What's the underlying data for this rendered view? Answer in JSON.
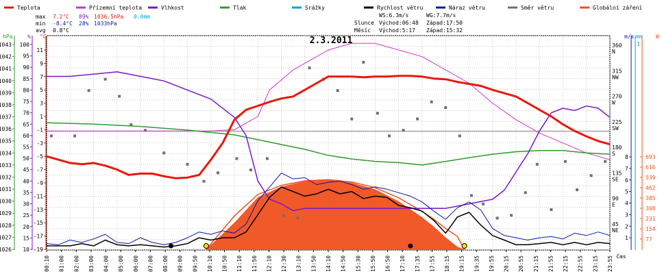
{
  "chart_data": {
    "type": "line",
    "title": "2.3.2011",
    "legend": [
      {
        "name": "Teplota",
        "color": "#e8180c"
      },
      {
        "name": "Přízemní teplota",
        "color": "#cc33cc"
      },
      {
        "name": "Vlhkost",
        "color": "#7a17c8"
      },
      {
        "name": "Tlak",
        "color": "#2e9a2e"
      },
      {
        "name": "Srážky",
        "color": "#00a0d8"
      },
      {
        "name": "Rychlost větru",
        "color": "#000000"
      },
      {
        "name": "Náraz větru",
        "color": "#0a16a8"
      },
      {
        "name": "Směr větru",
        "color": "#707070"
      },
      {
        "name": "Globální záření",
        "color": "#f0501e"
      }
    ],
    "stats": {
      "max_label": "max",
      "min_label": "min",
      "avg_label": "avg",
      "max_temp": "7.2°C",
      "max_hum": "89%",
      "max_press": "1036.5hPa",
      "max_rain": "0.0mm",
      "min_temp": "-8.4°C",
      "min_hum": "28%",
      "min_press": "1033hPa",
      "avg_temp": "0.8°C"
    },
    "wind_info": {
      "ws": "WS:6.3m/s",
      "wg": "WG:7.7m/s"
    },
    "sun": {
      "label": "Slunce",
      "rise": "Východ:06:48",
      "set": "Západ:17:50"
    },
    "moon": {
      "label": "Měsíc",
      "rise": "Východ:5:17",
      "set": "Západ:15:32"
    },
    "x_label": "čas",
    "x_ticks": [
      "00:10",
      "01:00",
      "02:00",
      "03:00",
      "04:00",
      "05:00",
      "06:00",
      "07:00",
      "08:00",
      "09:00",
      "09:50",
      "10:10",
      "10:50",
      "11:10",
      "11:50",
      "12:10",
      "12:30",
      "13:10",
      "13:50",
      "14:10",
      "14:50",
      "15:30",
      "15:50",
      "16:50",
      "17:10",
      "17:35",
      "17:55",
      "18:15",
      "19:15",
      "19:35",
      "19:55",
      "20:15",
      "20:55",
      "21:15",
      "21:55",
      "22:15",
      "22:55",
      "23:15",
      "23:55"
    ],
    "left_axes": {
      "press": {
        "unit": "hPa",
        "ticks": [
          "1026",
          "1027",
          "1028",
          "1029",
          "1030",
          "1031",
          "1032",
          "1033",
          "1034",
          "1035",
          "1036",
          "1037",
          "1038",
          "1039",
          "1040",
          "1041",
          "1042",
          "1043"
        ]
      },
      "hum": {
        "unit": "%",
        "ticks": [
          "10",
          "15",
          "20",
          "25",
          "30",
          "35",
          "40",
          "45",
          "50",
          "55",
          "60",
          "65",
          "70",
          "75",
          "80",
          "85",
          "90",
          "95",
          "100"
        ]
      },
      "temp": {
        "unit": "°C",
        "ticks": [
          "-19",
          "-17",
          "-15",
          "-13",
          "-11",
          "-9",
          "-7",
          "-5",
          "-3",
          "-1",
          "1",
          "3",
          "5",
          "7",
          "9",
          "11"
        ]
      }
    },
    "right_axes": {
      "dir": {
        "ticks": [
          "360 N",
          "315 NW",
          "270 W",
          "225 SW",
          "180 S",
          "135 SE",
          "90 E",
          "45 NE"
        ]
      },
      "wind": {
        "unit": "m/s",
        "ticks": [
          "1",
          "2",
          "3",
          "4",
          "5",
          "6",
          "7",
          "8"
        ]
      },
      "rain": {
        "unit": "mm",
        "ticks": [
          "1"
        ]
      },
      "rad": {
        "unit": "W",
        "ticks": [
          "77",
          "154",
          "231",
          "308",
          "385",
          "462",
          "539",
          "616",
          "693"
        ]
      }
    },
    "series": [
      {
        "name": "Teplota",
        "unit": "°C",
        "x": [
          0,
          0.5,
          1,
          1.5,
          2,
          2.5,
          3,
          3.5,
          4,
          4.5,
          5,
          5.5,
          6,
          6.5,
          7,
          7.5,
          8,
          8.5,
          9,
          9.5,
          10,
          10.5,
          11,
          11.5,
          12,
          12.5,
          13,
          13.5,
          14,
          14.5,
          15,
          15.5,
          16,
          16.5,
          17,
          17.5,
          18,
          18.5,
          19,
          19.5,
          20,
          20.5,
          21,
          21.5,
          22,
          22.5,
          23,
          23.5,
          24
        ],
        "values": [
          -5,
          -5.5,
          -6,
          -6.2,
          -6,
          -6.4,
          -7,
          -7.8,
          -7.6,
          -7.6,
          -8,
          -8.3,
          -8.2,
          -7.8,
          -5.5,
          -3,
          0.5,
          2,
          2.6,
          3.2,
          3.7,
          4,
          5,
          6,
          7,
          7,
          7,
          6.9,
          7,
          7,
          7.1,
          7.1,
          7,
          6.7,
          6.6,
          6.2,
          5.9,
          5.6,
          5,
          4.5,
          4,
          3,
          2,
          1,
          -0.2,
          -1.2,
          -2,
          -2.7,
          -3.2
        ]
      },
      {
        "name": "Vlhkost",
        "unit": "%",
        "x": [
          0,
          1,
          2,
          3,
          4,
          5,
          6,
          7,
          8,
          8.5,
          9,
          9.5,
          10,
          10.5,
          11,
          12,
          13,
          14,
          15,
          16,
          17,
          18,
          19,
          19.5,
          20,
          20.5,
          21,
          21.5,
          22,
          22.5,
          23,
          23.5,
          24
        ],
        "values": [
          86,
          86,
          87,
          88,
          86,
          84,
          80,
          76,
          68,
          60,
          40,
          32,
          30,
          27,
          28,
          28,
          28,
          28,
          28,
          28,
          28,
          30,
          32,
          36,
          44,
          52,
          62,
          70,
          72,
          71,
          73,
          72,
          68
        ]
      },
      {
        "name": "Přízemní teplota",
        "unit": "°C",
        "x": [
          0,
          1,
          2,
          3,
          4,
          5,
          6,
          7,
          8,
          8.5,
          9,
          9.5,
          10,
          10.5,
          11,
          12,
          13,
          14,
          15,
          16,
          17,
          18,
          19,
          20,
          21,
          22,
          23,
          24
        ],
        "values": [
          -1.2,
          -1.2,
          -1.2,
          -1.2,
          -1.2,
          -1.2,
          -1.2,
          -1.2,
          -1,
          0,
          1,
          5,
          6.5,
          8,
          9,
          11,
          12,
          12,
          11,
          10,
          8,
          6,
          3,
          0.5,
          -1.5,
          -3,
          -4.5,
          -5.5
        ]
      },
      {
        "name": "Tlak",
        "unit": "hPa",
        "x": [
          0,
          2,
          4,
          6,
          8,
          9,
          10,
          11,
          12,
          13,
          14,
          15,
          16,
          17,
          18,
          19,
          20,
          21,
          22,
          23,
          24
        ],
        "values": [
          1036.5,
          1036.4,
          1036.2,
          1035.9,
          1035.5,
          1035.1,
          1034.7,
          1034.3,
          1033.8,
          1033.5,
          1033.3,
          1033.2,
          1033,
          1033.3,
          1033.6,
          1033.9,
          1034.1,
          1034.2,
          1034.2,
          1034,
          1033.9
        ]
      },
      {
        "name": "Globální záření",
        "unit": "W",
        "x": [
          6.8,
          8,
          9,
          10,
          11,
          12,
          13,
          14,
          15,
          15.5,
          16,
          16.5,
          17,
          17.5,
          17.8
        ],
        "values": [
          0,
          200,
          390,
          470,
          510,
          520,
          500,
          450,
          360,
          300,
          240,
          170,
          90,
          20,
          0
        ]
      },
      {
        "name": "Rychlost větru",
        "unit": "m/s",
        "x": [
          0,
          0.5,
          1,
          1.5,
          2,
          2.5,
          3,
          3.5,
          4,
          4.5,
          5,
          5.5,
          6,
          6.5,
          7,
          7.5,
          8,
          8.5,
          9,
          9.5,
          10,
          10.5,
          11,
          11.5,
          12,
          12.5,
          13,
          13.5,
          14,
          14.5,
          15,
          15.5,
          16,
          16.5,
          17,
          17.5,
          18,
          18.5,
          19,
          19.5,
          20,
          20.5,
          21,
          21.5,
          22,
          22.5,
          23,
          23.5,
          24
        ],
        "values": [
          0.3,
          0.3,
          0.3,
          0.5,
          0.3,
          0.8,
          0.4,
          0.3,
          0.4,
          0.3,
          0.2,
          0.3,
          0.5,
          1,
          0.8,
          1,
          1,
          1.5,
          3,
          4.5,
          5.4,
          5,
          4.6,
          4.8,
          5.2,
          4.8,
          5,
          4.4,
          4.6,
          4.5,
          3.8,
          3.6,
          3.3,
          2.5,
          1.4,
          2.8,
          3.2,
          2.1,
          1.2,
          0.8,
          0.4,
          0.4,
          0.5,
          0.6,
          0.4,
          0.6,
          0.4,
          0.6,
          0.5
        ]
      },
      {
        "name": "Náraz větru",
        "unit": "m/s",
        "x": [
          0,
          0.5,
          1,
          1.5,
          2,
          2.5,
          3,
          3.5,
          4,
          4.5,
          5,
          5.5,
          6,
          6.5,
          7,
          7.5,
          8,
          8.5,
          9,
          9.5,
          10,
          10.5,
          11,
          11.5,
          12,
          12.5,
          13,
          13.5,
          14,
          14.5,
          15,
          15.5,
          16,
          16.5,
          17,
          17.5,
          18,
          18.5,
          19,
          19.5,
          20,
          20.5,
          21,
          21.5,
          22,
          22.5,
          23,
          23.5,
          24
        ],
        "values": [
          0.5,
          0.4,
          0.8,
          0.6,
          0.9,
          1.3,
          0.6,
          0.5,
          1,
          0.6,
          0.4,
          0.6,
          1,
          1.5,
          1.3,
          1.6,
          1.4,
          2.2,
          4.2,
          5.4,
          6.6,
          6.1,
          6.2,
          5.6,
          5.8,
          5.9,
          5.6,
          5.2,
          5.4,
          5.2,
          4.9,
          4.6,
          4.1,
          3.3,
          2.6,
          3.6,
          4.1,
          3.4,
          1.8,
          1.2,
          1,
          0.8,
          1,
          1.1,
          0.9,
          1.4,
          1.2,
          1.5,
          1.2
        ]
      },
      {
        "name": "Směr větru",
        "unit": "°",
        "x": [
          0.2,
          1.2,
          1.8,
          2.5,
          3.1,
          3.6,
          4.2,
          5,
          6,
          6.7,
          7.3,
          8.1,
          8.7,
          9.4,
          10.1,
          10.7,
          11.2,
          11.8,
          12.4,
          13,
          13.5,
          14.1,
          14.6,
          15.2,
          15.8,
          16.4,
          17,
          17.6,
          18.1,
          18.6,
          19.2,
          19.8,
          20.4,
          20.9,
          21.5,
          22.1,
          22.6,
          23.2,
          23.8
        ],
        "values": [
          200,
          200,
          280,
          300,
          270,
          220,
          210,
          170,
          150,
          120,
          135,
          160,
          140,
          160,
          60,
          55,
          320,
          300,
          280,
          230,
          330,
          240,
          200,
          210,
          230,
          260,
          250,
          200,
          95,
          80,
          55,
          60,
          100,
          150,
          70,
          155,
          105,
          130,
          155
        ]
      }
    ],
    "markers": [
      {
        "type": "moonrise",
        "x": 5.3
      },
      {
        "type": "sunrise",
        "x": 6.8
      },
      {
        "type": "moonset",
        "x": 15.5
      },
      {
        "type": "sunset",
        "x": 17.8
      }
    ]
  }
}
